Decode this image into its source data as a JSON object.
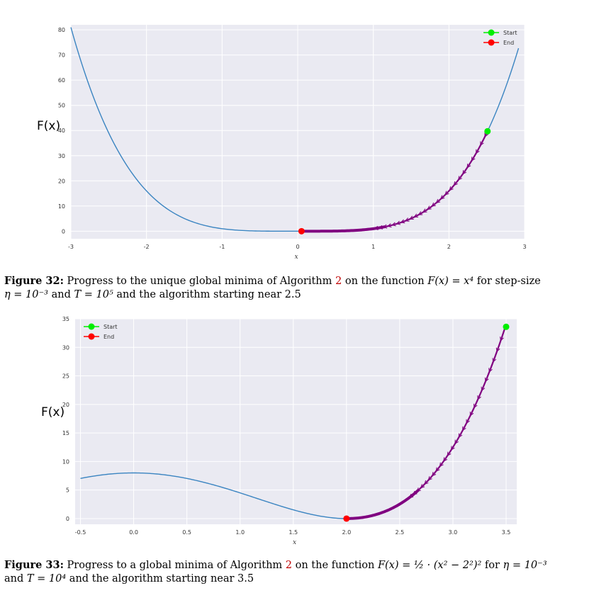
{
  "figures": [
    {
      "number": "32",
      "ylabel": "F(x)",
      "caption": {
        "label": "Figure 32:",
        "text_a": "Progress to the unique global minima of Algorithm",
        "ref": "2",
        "text_b": "on the function",
        "formula": "F(x) = x⁴",
        "text_c": "for step-size",
        "line2_eta": "η = 10⁻³",
        "line2_and": "and",
        "line2_T": "T = 10⁵",
        "line2_rest": "and the algorithm starting near 2.5"
      }
    },
    {
      "number": "33",
      "ylabel": "F(x)",
      "caption": {
        "label": "Figure 33:",
        "text_a": "Progress to a global minima of Algorithm",
        "ref": "2",
        "text_b": "on the function",
        "formula": "F(x) = ½ · (x² − 2²)²",
        "text_c": "for",
        "eta": "η = 10⁻³",
        "line2_and": "and",
        "line2_T": "T = 10⁴",
        "line2_rest": "and the algorithm starting near 3.5"
      }
    }
  ],
  "chart_data": [
    {
      "type": "line",
      "title": "",
      "xlabel": "x",
      "ylabel": "F(x)",
      "xlim": [
        -3,
        3
      ],
      "ylim": [
        -3,
        82
      ],
      "xticks": [
        -3,
        -2,
        -1,
        0,
        1,
        2,
        3
      ],
      "yticks": [
        0,
        10,
        20,
        30,
        40,
        50,
        60,
        70,
        80
      ],
      "grid": true,
      "legend_position": "top-right",
      "curve": {
        "function": "x^4",
        "x_range": [
          -3,
          2.92
        ],
        "color": "#3a84c1"
      },
      "iterates": {
        "x_from": 2.5,
        "x_to": 0.05,
        "color": "#800080"
      },
      "series": [
        {
          "name": "Start",
          "x": [
            2.51
          ],
          "y": [
            39.7
          ],
          "color": "#00ee00"
        },
        {
          "name": "End",
          "x": [
            0.05
          ],
          "y": [
            0.0
          ],
          "color": "#ff0000"
        }
      ]
    },
    {
      "type": "line",
      "title": "",
      "xlabel": "x",
      "ylabel": "F(x)",
      "xlim": [
        -0.55,
        3.6
      ],
      "ylim": [
        -1,
        35
      ],
      "xticks": [
        -0.5,
        0.0,
        0.5,
        1.0,
        1.5,
        2.0,
        2.5,
        3.0,
        3.5
      ],
      "xtick_labels": [
        "-0.5",
        "0.0",
        "0.5",
        "1.0",
        "1.5",
        "2.0",
        "2.5",
        "3.0",
        "3.5"
      ],
      "yticks": [
        0,
        5,
        10,
        15,
        20,
        25,
        30,
        35
      ],
      "grid": true,
      "legend_position": "top-left",
      "curve": {
        "function": "0.5*(x^2-4)^2",
        "x_range": [
          -0.5,
          3.5
        ],
        "color": "#3a84c1"
      },
      "iterates": {
        "x_from": 3.5,
        "x_to": 2.0,
        "color": "#800080"
      },
      "series": [
        {
          "name": "Start",
          "x": [
            3.5
          ],
          "y": [
            33.6
          ],
          "color": "#00ee00"
        },
        {
          "name": "End",
          "x": [
            2.0
          ],
          "y": [
            0.0
          ],
          "color": "#ff0000"
        }
      ]
    }
  ]
}
